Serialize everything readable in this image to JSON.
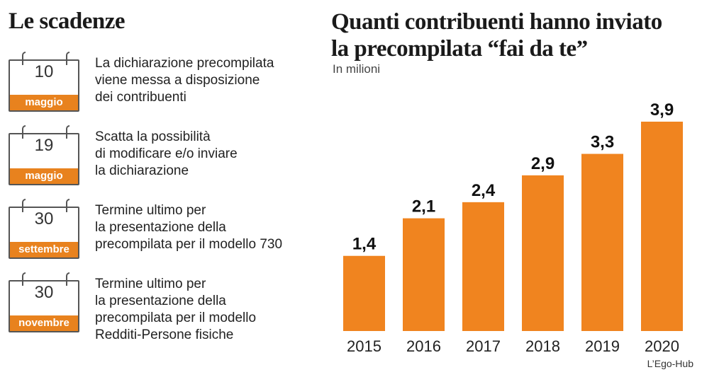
{
  "left_panel": {
    "title": "Le scadenze",
    "deadlines": [
      {
        "day": "10",
        "month": "maggio",
        "text": "La dichiarazione precompilata\nviene messa a disposizione\ndei contribuenti"
      },
      {
        "day": "19",
        "month": "maggio",
        "text": "Scatta la possibilità\ndi modificare e/o inviare\nla dichiarazione"
      },
      {
        "day": "30",
        "month": "settembre",
        "text": "Termine ultimo per\nla presentazione della\nprecompilata per il modello 730"
      },
      {
        "day": "30",
        "month": "novembre",
        "text": "Termine ultimo per\nla presentazione della\nprecompilata per il modello\nRedditi-Persone fisiche"
      }
    ]
  },
  "chart_data": {
    "type": "bar",
    "title": "Quanti contribuenti hanno inviato\nla precompilata “fai da te”",
    "subtitle": "In milioni",
    "categories": [
      "2015",
      "2016",
      "2017",
      "2018",
      "2019",
      "2020"
    ],
    "values": [
      1.4,
      2.1,
      2.4,
      2.9,
      3.3,
      3.9
    ],
    "value_labels": [
      "1,4",
      "2,1",
      "2,4",
      "2,9",
      "3,3",
      "3,9"
    ],
    "ylim": [
      0,
      4.0
    ],
    "grid": false,
    "bar_color": "#f0841f"
  },
  "credit": "L’Ego-Hub",
  "colors": {
    "accent": "#e8821e",
    "bar": "#f0841f",
    "text": "#1a1a1a"
  }
}
